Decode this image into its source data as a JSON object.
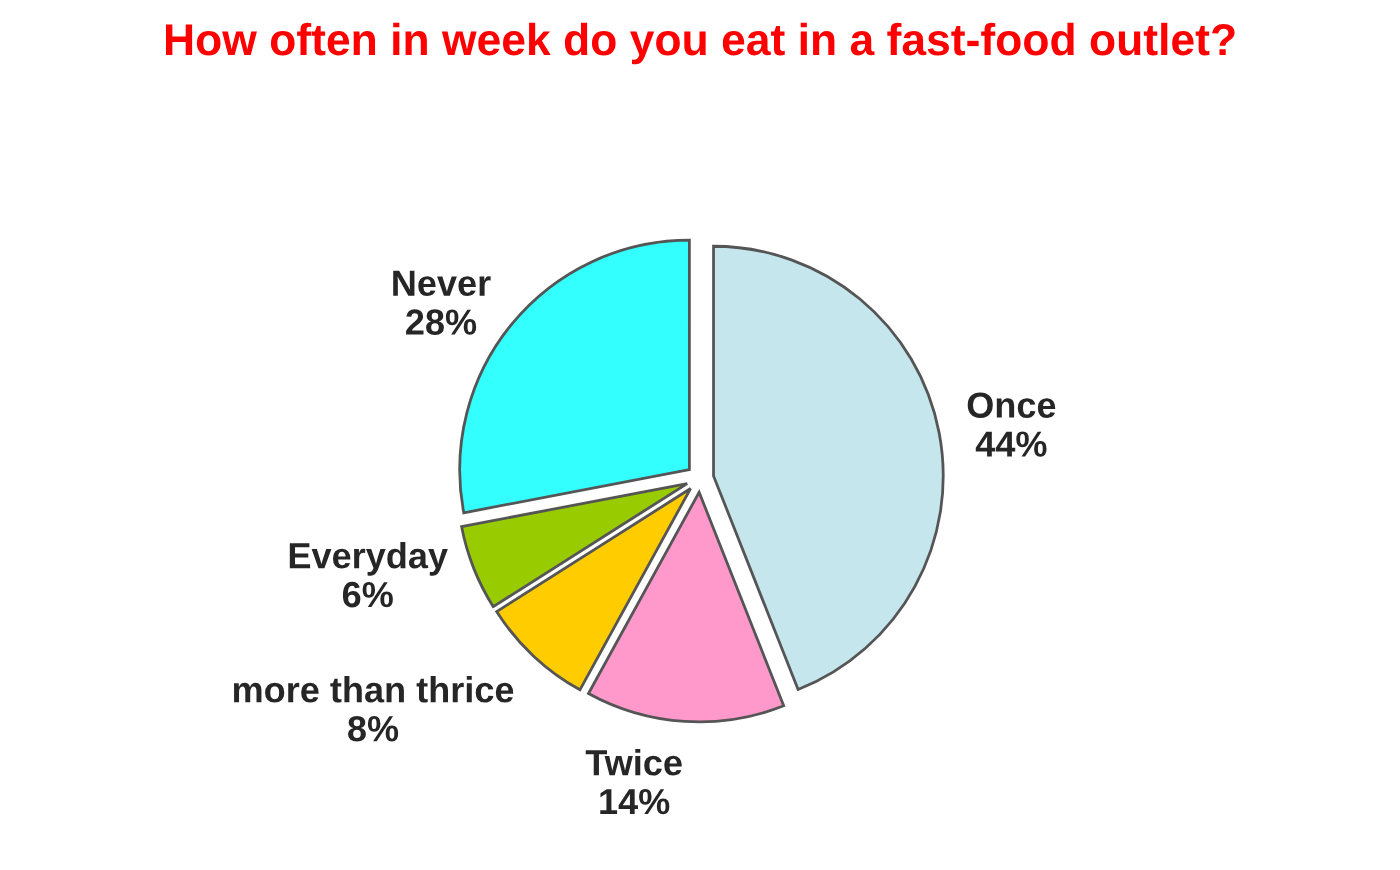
{
  "chart_data": {
    "type": "pie",
    "title": "How often in week do you eat in a fast-food outlet?",
    "categories": [
      "Once",
      "Twice",
      "more than thrice",
      "Everyday",
      "Never"
    ],
    "values": [
      44,
      14,
      8,
      6,
      28
    ],
    "value_labels": [
      "44%",
      "14%",
      "8%",
      "6%",
      "28%"
    ],
    "colors": [
      "#c4e6ec",
      "#ff99cc",
      "#ffcc00",
      "#99cc00",
      "#33ffff"
    ],
    "legend": false
  }
}
